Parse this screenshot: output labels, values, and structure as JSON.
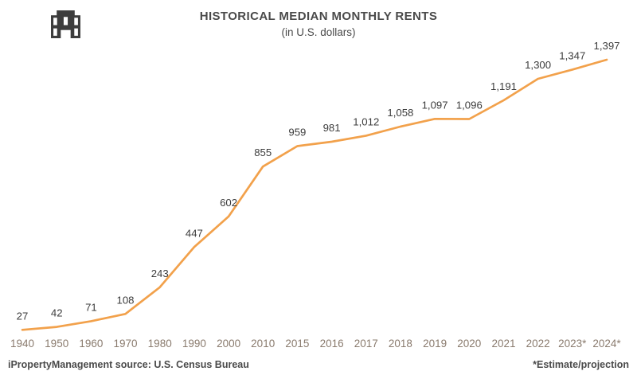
{
  "header": {
    "title": "HISTORICAL MEDIAN MONTHLY RENTS",
    "subtitle": "(in U.S. dollars)",
    "logo_icon": "building-icon"
  },
  "chart_data": {
    "type": "line",
    "title": "HISTORICAL MEDIAN MONTHLY RENTS",
    "subtitle": "(in U.S. dollars)",
    "categories": [
      "1940",
      "1950",
      "1960",
      "1970",
      "1980",
      "1990",
      "2000",
      "2010",
      "2015",
      "2016",
      "2017",
      "2018",
      "2019",
      "2020",
      "2021",
      "2022",
      "2023*",
      "2024*"
    ],
    "values": [
      27,
      42,
      71,
      108,
      243,
      447,
      602,
      855,
      959,
      981,
      1012,
      1058,
      1097,
      1096,
      1191,
      1300,
      1347,
      1397
    ],
    "value_labels": [
      "27",
      "42",
      "71",
      "108",
      "243",
      "447",
      "602",
      "855",
      "959",
      "981",
      "1,012",
      "1,058",
      "1,097",
      "1,096",
      "1,191",
      "1,300",
      "1,347",
      "1,397"
    ],
    "xlabel": "",
    "ylabel": "",
    "ylim": [
      0,
      1450
    ],
    "grid": false,
    "legend": "none",
    "line_color": "#F2A14B",
    "label_color": "#3C3C3C",
    "axis_label_color": "#8A7B6E",
    "logo_color": "#3D3D3D"
  },
  "footer": {
    "source": "iPropertyManagement source: U.S. Census Bureau",
    "note": "*Estimate/projection"
  }
}
